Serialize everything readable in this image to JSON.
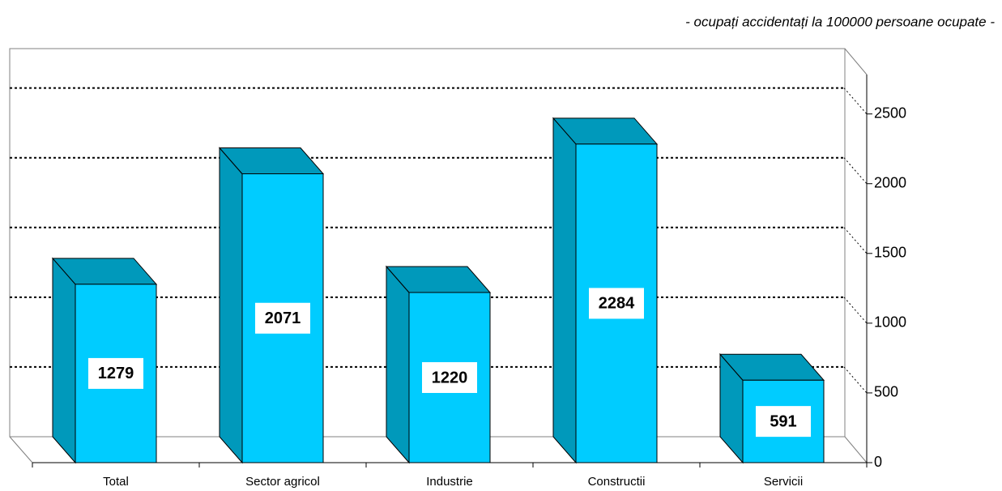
{
  "chart_data": {
    "type": "bar3d",
    "subtitle": "- ocupați accidentați la 100000 persoane ocupate -",
    "categories": [
      "Total",
      "Sector agricol",
      "Industrie",
      "Constructii",
      "Servicii"
    ],
    "values": [
      1279,
      2071,
      1220,
      2284,
      591
    ],
    "color": "#00ccff",
    "side_color": "#0099bb",
    "ylim": [
      0,
      2800
    ],
    "yticks": [
      0,
      500,
      1000,
      1500,
      2000,
      2500
    ],
    "grid": true
  }
}
